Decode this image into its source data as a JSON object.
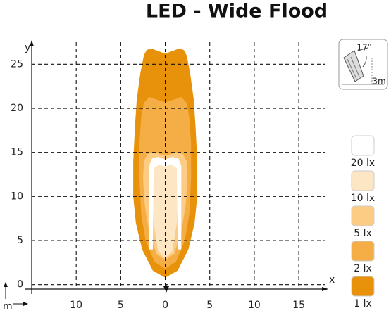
{
  "chart_data": {
    "type": "isolux",
    "title": "LED - Wide Flood",
    "x_label": "x",
    "y_label": "y",
    "unit_label": "m",
    "xlim": [
      -15,
      18
    ],
    "ylim": [
      -0.5,
      27.5
    ],
    "xticks": [
      {
        "value": -10,
        "label": "10"
      },
      {
        "value": -5,
        "label": "5"
      },
      0,
      5,
      10,
      15
    ],
    "yticks": [
      0,
      5,
      10,
      15,
      20,
      25
    ],
    "grid": true,
    "series": [
      {
        "name": "20 lx",
        "color": "#ffffff",
        "x": [
          -1.8,
          -1.8,
          -1.5,
          -0.8,
          0,
          0.8,
          1.5,
          1.8,
          1.8,
          1.4,
          1.3,
          0.7,
          0,
          -0.7,
          -1.3,
          -1.4
        ],
        "y": [
          4,
          13.5,
          14.3,
          14.5,
          14.2,
          14.5,
          14.3,
          13.5,
          4,
          4,
          13.2,
          13.6,
          13.4,
          13.6,
          13.2,
          4
        ]
      },
      {
        "name": "10 lx",
        "color": "#fde6c4",
        "x": [
          0,
          0.8,
          1.3,
          1.4,
          1.3,
          0.7,
          0,
          -0.7,
          -1.3,
          -1.4,
          -1.3,
          -0.8
        ],
        "y": [
          3,
          3.8,
          7,
          10,
          13.2,
          13.6,
          13.4,
          13.6,
          13.2,
          10,
          7,
          3.8
        ]
      },
      {
        "name": "5 lx",
        "color": "#fccc84",
        "x": [
          0,
          1,
          1.8,
          2.3,
          2.5,
          2.4,
          2,
          1.2,
          0,
          -1.2,
          -2,
          -2.4,
          -2.5,
          -2.3,
          -1.8,
          -1
        ],
        "y": [
          2.8,
          3.5,
          6,
          9,
          12,
          14,
          14.8,
          15,
          14.6,
          15,
          14.8,
          14,
          12,
          9,
          6,
          3.5
        ]
      },
      {
        "name": "2 lx",
        "color": "#f5ae45",
        "x": [
          0,
          1.2,
          2.2,
          2.7,
          2.9,
          2.9,
          2.7,
          2.4,
          1.8,
          1,
          0,
          -1,
          -1.8,
          -2.4,
          -2.7,
          -2.9,
          -2.9,
          -2.7,
          -2.2,
          -1.2
        ],
        "y": [
          1.8,
          2.6,
          5,
          8,
          12,
          16,
          19,
          20.6,
          21.3,
          21,
          20.7,
          21,
          21.3,
          20.6,
          19,
          16,
          12,
          8,
          5,
          2.6
        ]
      },
      {
        "name": "1 lx",
        "color": "#e8920c",
        "x": [
          0,
          1.4,
          2.6,
          3.3,
          3.6,
          3.6,
          3.4,
          3.2,
          2.8,
          2.4,
          2.1,
          1.6,
          0.8,
          0,
          -0.8,
          -1.6,
          -2.1,
          -2.4,
          -2.8,
          -3.2,
          -3.4,
          -3.6,
          -3.6,
          -3.3,
          -2.6,
          -1.4
        ],
        "y": [
          0.8,
          1.6,
          4,
          7,
          10,
          14,
          18,
          21,
          24,
          26,
          26.6,
          26.8,
          26.5,
          26.2,
          26.5,
          26.8,
          26.6,
          26,
          24,
          21,
          18,
          14,
          10,
          7,
          4,
          1.6
        ]
      }
    ]
  },
  "mounting": {
    "angle": "17°",
    "height": "3m"
  }
}
